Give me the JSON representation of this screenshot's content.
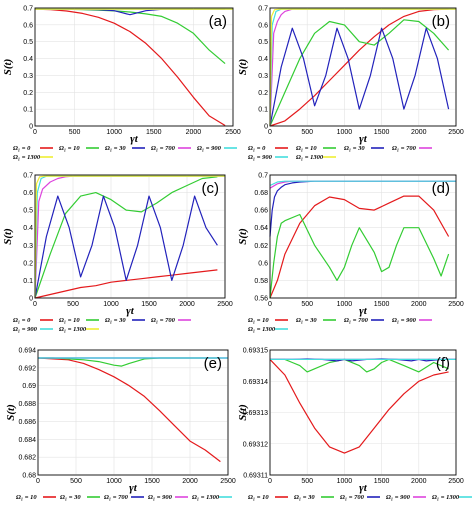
{
  "chart_data": [
    {
      "id": "a",
      "type": "line",
      "panel_label": "(a)",
      "xlabel": "γt",
      "ylabel": "S(t)",
      "xlim": [
        0,
        2500
      ],
      "ylim": [
        0,
        0.7
      ],
      "xticks": [
        "0",
        "500",
        "1000",
        "1500",
        "2000",
        "2500"
      ],
      "yticks": [
        "0",
        "0.1",
        "0.2",
        "0.3",
        "0.4",
        "0.5",
        "0.6",
        "0.7"
      ],
      "grid": true,
      "legend_position": "below",
      "series": [
        {
          "name": "Ω₁ = 0",
          "color": "#e41a1c",
          "x": [
            0,
            200,
            400,
            600,
            800,
            1000,
            1200,
            1400,
            1600,
            1800,
            2000,
            2200,
            2400
          ],
          "y": [
            0.693,
            0.69,
            0.682,
            0.668,
            0.645,
            0.61,
            0.56,
            0.49,
            0.4,
            0.29,
            0.17,
            0.06,
            0.003
          ]
        },
        {
          "name": "Ω₁ = 10",
          "color": "#33cc33",
          "x": [
            0,
            200,
            400,
            600,
            800,
            1000,
            1200,
            1400,
            1600,
            1800,
            2000,
            2200,
            2400
          ],
          "y": [
            0.693,
            0.693,
            0.692,
            0.69,
            0.687,
            0.683,
            0.676,
            0.665,
            0.65,
            0.61,
            0.55,
            0.45,
            0.37
          ]
        },
        {
          "name": "Ω₁ = 30",
          "color": "#2222bb",
          "x": [
            0,
            400,
            800,
            1000,
            1100,
            1200,
            1300,
            1400,
            1600,
            2000,
            2400
          ],
          "y": [
            0.693,
            0.693,
            0.69,
            0.684,
            0.672,
            0.66,
            0.672,
            0.684,
            0.692,
            0.693,
            0.693
          ]
        },
        {
          "name": "Ω₁ = 700",
          "color": "#dd44dd",
          "x": [
            0,
            2500
          ],
          "y": [
            0.693,
            0.693
          ]
        },
        {
          "name": "Ω₁ = 900",
          "color": "#44dddd",
          "x": [
            0,
            2500
          ],
          "y": [
            0.693,
            0.693
          ]
        },
        {
          "name": "Ω₁ = 1300",
          "color": "#eeee33",
          "x": [
            0,
            2500
          ],
          "y": [
            0.693,
            0.693
          ]
        }
      ]
    },
    {
      "id": "b",
      "type": "line",
      "panel_label": "(b)",
      "xlabel": "γt",
      "ylabel": "S(t)",
      "xlim": [
        0,
        2500
      ],
      "ylim": [
        0,
        0.7
      ],
      "xticks": [
        "0",
        "500",
        "1000",
        "1500",
        "2000",
        "2500"
      ],
      "yticks": [
        "0",
        "0.1",
        "0.2",
        "0.3",
        "0.4",
        "0.5",
        "0.6",
        "0.7"
      ],
      "grid": true,
      "legend_position": "below",
      "series": [
        {
          "name": "Ω₁ = 0",
          "color": "#e41a1c",
          "x": [
            0,
            200,
            400,
            600,
            800,
            1000,
            1200,
            1400,
            1600,
            1800,
            2000,
            2200,
            2400
          ],
          "y": [
            0.0,
            0.03,
            0.1,
            0.18,
            0.27,
            0.36,
            0.45,
            0.53,
            0.6,
            0.65,
            0.68,
            0.69,
            0.693
          ]
        },
        {
          "name": "Ω₁ = 10",
          "color": "#33cc33",
          "x": [
            0,
            200,
            400,
            600,
            800,
            1000,
            1200,
            1400,
            1600,
            1800,
            2000,
            2200,
            2400
          ],
          "y": [
            0.0,
            0.2,
            0.4,
            0.55,
            0.62,
            0.6,
            0.5,
            0.48,
            0.55,
            0.63,
            0.62,
            0.55,
            0.45
          ]
        },
        {
          "name": "Ω₁ = 30",
          "color": "#2222bb",
          "x": [
            0,
            150,
            300,
            450,
            600,
            750,
            900,
            1050,
            1200,
            1350,
            1500,
            1650,
            1800,
            1950,
            2100,
            2250,
            2400
          ],
          "y": [
            0.0,
            0.35,
            0.58,
            0.4,
            0.12,
            0.3,
            0.58,
            0.4,
            0.1,
            0.3,
            0.58,
            0.4,
            0.1,
            0.3,
            0.58,
            0.4,
            0.1
          ]
        },
        {
          "name": "Ω₁ = 700",
          "color": "#dd44dd",
          "x": [
            0,
            50,
            100,
            150,
            200,
            300,
            2500
          ],
          "y": [
            0.0,
            0.55,
            0.62,
            0.66,
            0.68,
            0.693,
            0.693
          ]
        },
        {
          "name": "Ω₁ = 900",
          "color": "#44dddd",
          "x": [
            0,
            30,
            80,
            150,
            2500
          ],
          "y": [
            0.0,
            0.6,
            0.68,
            0.693,
            0.693
          ]
        },
        {
          "name": "Ω₁ = 1300",
          "color": "#eeee33",
          "x": [
            0,
            20,
            60,
            120,
            2500
          ],
          "y": [
            0.0,
            0.65,
            0.69,
            0.693,
            0.693
          ]
        }
      ]
    },
    {
      "id": "c",
      "type": "line",
      "panel_label": "(c)",
      "xlabel": "γt",
      "ylabel": "S(t)",
      "xlim": [
        0,
        2500
      ],
      "ylim": [
        0,
        0.7
      ],
      "xticks": [
        "0",
        "500",
        "1000",
        "1500",
        "2000",
        "2500"
      ],
      "yticks": [
        "0",
        "0.1",
        "0.2",
        "0.3",
        "0.4",
        "0.5",
        "0.6",
        "0.7"
      ],
      "grid": true,
      "legend_position": "below",
      "series": [
        {
          "name": "Ω₁ = 0",
          "color": "#e41a1c",
          "x": [
            0,
            200,
            400,
            600,
            800,
            1000,
            1200,
            1400,
            1600,
            1800,
            2000,
            2200,
            2400
          ],
          "y": [
            0.0,
            0.02,
            0.04,
            0.06,
            0.07,
            0.09,
            0.1,
            0.11,
            0.12,
            0.13,
            0.14,
            0.15,
            0.16
          ]
        },
        {
          "name": "Ω₁ = 10",
          "color": "#33cc33",
          "x": [
            0,
            200,
            400,
            600,
            800,
            1000,
            1200,
            1400,
            1600,
            1800,
            2000,
            2200,
            2400
          ],
          "y": [
            0.0,
            0.25,
            0.48,
            0.58,
            0.6,
            0.56,
            0.5,
            0.49,
            0.54,
            0.6,
            0.64,
            0.68,
            0.69
          ]
        },
        {
          "name": "Ω₁ = 30",
          "color": "#2222bb",
          "x": [
            0,
            150,
            300,
            450,
            600,
            750,
            900,
            1050,
            1200,
            1350,
            1500,
            1650,
            1800,
            1950,
            2100,
            2250,
            2400
          ],
          "y": [
            0.0,
            0.35,
            0.58,
            0.4,
            0.12,
            0.3,
            0.58,
            0.4,
            0.1,
            0.3,
            0.58,
            0.4,
            0.1,
            0.3,
            0.58,
            0.4,
            0.3
          ]
        },
        {
          "name": "Ω₁ = 700",
          "color": "#dd44dd",
          "x": [
            0,
            50,
            100,
            200,
            300,
            400,
            500,
            2500
          ],
          "y": [
            0.0,
            0.55,
            0.62,
            0.66,
            0.68,
            0.69,
            0.693,
            0.693
          ]
        },
        {
          "name": "Ω₁ = 900",
          "color": "#44dddd",
          "x": [
            0,
            30,
            80,
            150,
            2500
          ],
          "y": [
            0.0,
            0.6,
            0.68,
            0.693,
            0.693
          ]
        },
        {
          "name": "Ω₁ = 1300",
          "color": "#eeee33",
          "x": [
            0,
            20,
            60,
            120,
            2500
          ],
          "y": [
            0.0,
            0.65,
            0.69,
            0.693,
            0.693
          ]
        }
      ]
    },
    {
      "id": "d",
      "type": "line",
      "panel_label": "(d)",
      "xlabel": "γt",
      "ylabel": "S(t)",
      "xlim": [
        0,
        2500
      ],
      "ylim": [
        0.56,
        0.7
      ],
      "xticks": [
        "0",
        "500",
        "1000",
        "1500",
        "2000",
        "2500"
      ],
      "yticks": [
        "0.56",
        "0.58",
        "0.6",
        "0.62",
        "0.64",
        "0.66",
        "0.68",
        "0.7"
      ],
      "grid": true,
      "legend_position": "below",
      "series": [
        {
          "name": "Ω₁ = 10",
          "color": "#e41a1c",
          "x": [
            0,
            100,
            200,
            400,
            600,
            800,
            1000,
            1200,
            1400,
            1600,
            1800,
            2000,
            2200,
            2400
          ],
          "y": [
            0.56,
            0.58,
            0.61,
            0.645,
            0.665,
            0.675,
            0.672,
            0.662,
            0.66,
            0.668,
            0.676,
            0.676,
            0.66,
            0.63
          ]
        },
        {
          "name": "Ω₁ = 30",
          "color": "#33cc33",
          "x": [
            0,
            50,
            100,
            150,
            200,
            400,
            600,
            800,
            900,
            1000,
            1100,
            1200,
            1400,
            1500,
            1600,
            1700,
            1800,
            2000,
            2200,
            2300,
            2400
          ],
          "y": [
            0.56,
            0.6,
            0.63,
            0.645,
            0.648,
            0.655,
            0.62,
            0.595,
            0.58,
            0.595,
            0.62,
            0.64,
            0.612,
            0.59,
            0.595,
            0.62,
            0.64,
            0.64,
            0.605,
            0.585,
            0.61
          ]
        },
        {
          "name": "Ω₁ = 700",
          "color": "#2222bb",
          "x": [
            0,
            30,
            60,
            100,
            150,
            200,
            300,
            400,
            600,
            2500
          ],
          "y": [
            0.63,
            0.66,
            0.675,
            0.682,
            0.686,
            0.689,
            0.691,
            0.692,
            0.693,
            0.693
          ]
        },
        {
          "name": "Ω₁ = 900",
          "color": "#dd44dd",
          "x": [
            0,
            100,
            200,
            300,
            2500
          ],
          "y": [
            0.685,
            0.69,
            0.692,
            0.693,
            0.693
          ]
        },
        {
          "name": "Ω₁ = 1300",
          "color": "#44dddd",
          "x": [
            0,
            100,
            200,
            2500
          ],
          "y": [
            0.688,
            0.692,
            0.693,
            0.693
          ]
        }
      ]
    },
    {
      "id": "e",
      "type": "line",
      "panel_label": "(e)",
      "xlabel": "γt",
      "ylabel": "S(t)",
      "xlim": [
        0,
        2500
      ],
      "ylim": [
        0.68,
        0.694
      ],
      "xticks": [
        "0",
        "500",
        "1000",
        "1500",
        "2000",
        "2500"
      ],
      "yticks": [
        "0.68",
        "0.682",
        "0.684",
        "0.686",
        "0.688",
        "0.69",
        "0.692",
        "0.694"
      ],
      "grid": true,
      "legend_position": "below",
      "series": [
        {
          "name": "Ω₁ = 10",
          "color": "#e41a1c",
          "x": [
            0,
            200,
            400,
            600,
            800,
            1000,
            1200,
            1400,
            1600,
            1800,
            2000,
            2200,
            2400
          ],
          "y": [
            0.6931,
            0.693,
            0.6929,
            0.6925,
            0.6918,
            0.691,
            0.69,
            0.6888,
            0.6872,
            0.6855,
            0.6838,
            0.6828,
            0.6815
          ]
        },
        {
          "name": "Ω₁ = 30",
          "color": "#33cc33",
          "x": [
            0,
            200,
            400,
            600,
            800,
            1000,
            1100,
            1200,
            1400,
            1600,
            1800,
            2000,
            2200,
            2400
          ],
          "y": [
            0.6931,
            0.6931,
            0.693,
            0.6929,
            0.6927,
            0.6923,
            0.6922,
            0.6925,
            0.693,
            0.6931,
            0.6931,
            0.6931,
            0.6931,
            0.6931
          ]
        },
        {
          "name": "Ω₁ = 700",
          "color": "#2222bb",
          "x": [
            0,
            2500
          ],
          "y": [
            0.6931,
            0.6931
          ]
        },
        {
          "name": "Ω₁ = 900",
          "color": "#dd44dd",
          "x": [
            0,
            2500
          ],
          "y": [
            0.6931,
            0.6931
          ]
        },
        {
          "name": "Ω₁ = 1300",
          "color": "#44dddd",
          "x": [
            0,
            2500
          ],
          "y": [
            0.6931,
            0.6931
          ]
        }
      ]
    },
    {
      "id": "f",
      "type": "line",
      "panel_label": "(f)",
      "xlabel": "γt",
      "ylabel": "S(t)",
      "xlim": [
        0,
        2500
      ],
      "ylim": [
        0.69311,
        0.69315
      ],
      "xticks": [
        "0",
        "500",
        "1000",
        "1500",
        "2000",
        "2500"
      ],
      "yticks": [
        "0.69311",
        "0.69312",
        "0.69313",
        "0.69314",
        "0.69315"
      ],
      "grid": true,
      "legend_position": "below",
      "series": [
        {
          "name": "Ω₁ = 10",
          "color": "#e41a1c",
          "x": [
            0,
            200,
            400,
            600,
            800,
            1000,
            1200,
            1400,
            1600,
            1800,
            2000,
            2200,
            2400
          ],
          "y": [
            0.693147,
            0.693142,
            0.693133,
            0.693125,
            0.693119,
            0.693117,
            0.693119,
            0.693125,
            0.693131,
            0.693136,
            0.69314,
            0.693142,
            0.693143
          ]
        },
        {
          "name": "Ω₁ = 30",
          "color": "#33cc33",
          "x": [
            0,
            200,
            300,
            400,
            500,
            600,
            800,
            1000,
            1200,
            1300,
            1400,
            1500,
            1600,
            1800,
            2000,
            2200,
            2400
          ],
          "y": [
            0.693147,
            0.693147,
            0.693146,
            0.693145,
            0.693143,
            0.693144,
            0.693146,
            0.693147,
            0.693145,
            0.693143,
            0.693144,
            0.693146,
            0.693147,
            0.693145,
            0.693143,
            0.693146,
            0.693144
          ]
        },
        {
          "name": "Ω₁ = 700",
          "color": "#2222bb",
          "x": [
            0,
            300,
            500,
            700,
            900,
            1000,
            1100,
            1300,
            1500,
            1700,
            1900,
            2000,
            2100,
            2300,
            2500
          ],
          "y": [
            0.693147,
            0.693147,
            0.6931472,
            0.693147,
            0.6931465,
            0.693147,
            0.6931465,
            0.693147,
            0.6931472,
            0.693147,
            0.6931465,
            0.693147,
            0.6931465,
            0.693147,
            0.693147
          ]
        },
        {
          "name": "Ω₁ = 900",
          "color": "#dd44dd",
          "x": [
            0,
            2500
          ],
          "y": [
            0.693147,
            0.693147
          ]
        },
        {
          "name": "Ω₁ = 1300",
          "color": "#44dddd",
          "x": [
            0,
            2500
          ],
          "y": [
            0.693147,
            0.693147
          ]
        }
      ]
    }
  ]
}
